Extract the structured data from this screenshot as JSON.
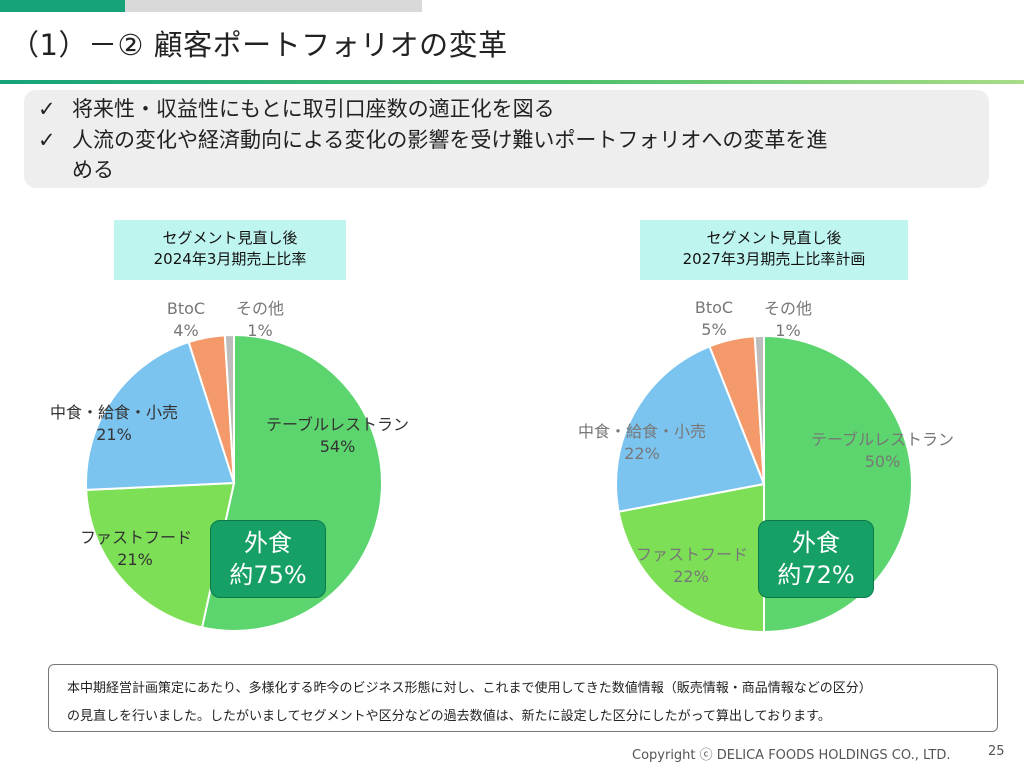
{
  "title": "（1）－② 顧客ポートフォリオの変革",
  "bullets": [
    "将来性・収益性にもとに取引口座数の適正化を図る",
    "人流の変化や経済動向による変化の影響を受け難いポートフォリオへの変革を進",
    "める"
  ],
  "colors": {
    "accent": "#16a37a",
    "table_restaurant": "#5cd56f",
    "fast_food": "#7ddf55",
    "nakashoku": "#7cc4f0",
    "btoc": "#f49a6a",
    "other": "#bdbdbd",
    "badge": "#16a066"
  },
  "charts": {
    "left": {
      "caption_line1": "セグメント見直し後",
      "caption_line2": "2024年3月期売上比率",
      "badge_line1": "外食",
      "badge_line2": "約75%",
      "labels": {
        "table_name": "テーブルレストラン",
        "table_pct": "54%",
        "fast_name": "ファストフード",
        "fast_pct": "21%",
        "naka_name": "中食・給食・小売",
        "naka_pct": "21%",
        "btoc_name": "BtoC",
        "btoc_pct": "4%",
        "other_name": "その他",
        "other_pct": "1%"
      }
    },
    "right": {
      "caption_line1": "セグメント見直し後",
      "caption_line2": "2027年3月期売上比率計画",
      "badge_line1": "外食",
      "badge_line2": "約72%",
      "labels": {
        "table_name": "テーブルレストラン",
        "table_pct": "50%",
        "fast_name": "ファストフード",
        "fast_pct": "22%",
        "naka_name": "中食・給食・小売",
        "naka_pct": "22%",
        "btoc_name": "BtoC",
        "btoc_pct": "5%",
        "other_name": "その他",
        "other_pct": "1%"
      }
    }
  },
  "chart_data": [
    {
      "type": "pie",
      "categories": [
        "テーブルレストラン",
        "ファストフード",
        "中食・給食・小売",
        "BtoC",
        "その他"
      ],
      "values": [
        54,
        21,
        21,
        4,
        1
      ],
      "title": "セグメント見直し後 2024年3月期売上比率"
    },
    {
      "type": "pie",
      "categories": [
        "テーブルレストラン",
        "ファストフード",
        "中食・給食・小売",
        "BtoC",
        "その他"
      ],
      "values": [
        50,
        22,
        22,
        5,
        1
      ],
      "title": "セグメント見直し後 2027年3月期売上比率計画"
    }
  ],
  "note": {
    "line1": "本中期経営計画策定にあたり、多様化する昨今のビジネス形態に対し、これまで使用してきた数値情報（販売情報・商品情報などの区分）",
    "line2": "の見直しを行いました。したがいましてセグメントや区分などの過去数値は、新たに設定した区分にしたがって算出しております。"
  },
  "footer": {
    "copyright": "Copyright ⓒ DELICA FOODS HOLDINGS CO., LTD.",
    "page": "25"
  }
}
